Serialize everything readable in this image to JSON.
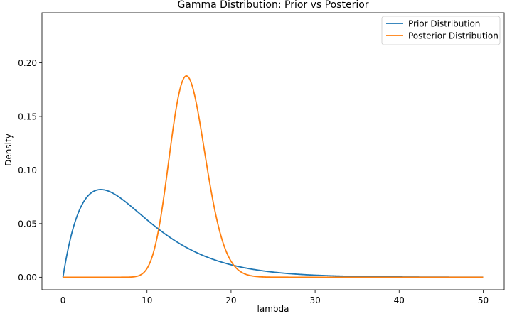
{
  "chart_data": {
    "type": "line",
    "title": "Gamma Distribution: Prior vs Posterior",
    "xlabel": "lambda",
    "ylabel": "Density",
    "xlim": [
      -2.5,
      52.5
    ],
    "ylim": [
      -0.0117,
      0.2467
    ],
    "xticks": [
      0,
      10,
      20,
      30,
      40,
      50
    ],
    "yticks": [
      0.0,
      0.05,
      0.1,
      0.15,
      0.2
    ],
    "ytick_labels": [
      "0.00",
      "0.05",
      "0.10",
      "0.15",
      "0.20"
    ],
    "grid": false,
    "legend_position": "top-right",
    "series": [
      {
        "name": "Prior Distribution",
        "color": "#1f77b4",
        "distribution": "gamma",
        "shape": 2,
        "scale": 4.5,
        "x_range": [
          0,
          50
        ]
      },
      {
        "name": "Posterior Distribution",
        "color": "#ff7f0e",
        "distribution": "gamma",
        "shape": 49,
        "scale": 0.3061,
        "x_range": [
          0,
          50
        ]
      }
    ]
  }
}
